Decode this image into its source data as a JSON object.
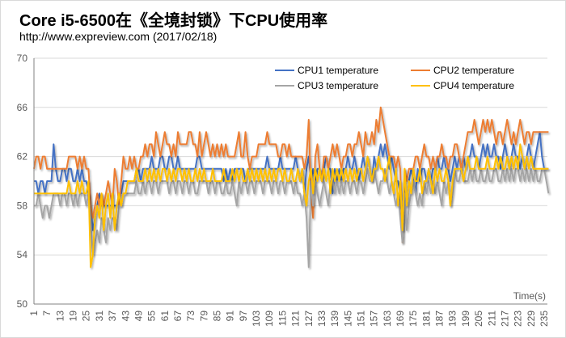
{
  "chart_data": {
    "type": "line",
    "title": "Core i5-6500在《全境封锁》下CPU使用率",
    "subtitle": "http://www.expreview.com (2017/02/18)",
    "xlabel": "Time(s)",
    "ylabel": "",
    "ylim": [
      50,
      70
    ],
    "yticks": [
      50,
      54,
      58,
      62,
      66,
      70
    ],
    "xlim": [
      1,
      237
    ],
    "xticks": [
      1,
      7,
      13,
      19,
      25,
      31,
      37,
      43,
      49,
      55,
      61,
      67,
      73,
      79,
      85,
      91,
      97,
      103,
      109,
      115,
      121,
      127,
      133,
      139,
      145,
      151,
      157,
      163,
      169,
      175,
      181,
      187,
      193,
      199,
      205,
      211,
      217,
      223,
      229,
      235
    ],
    "grid": true,
    "legend_position": "top-right",
    "series": [
      {
        "name": "CPU1 temperature",
        "color": "#4472C4",
        "values": [
          60,
          60,
          59,
          60,
          60,
          59,
          60,
          60,
          60,
          63,
          61,
          60,
          60,
          61,
          61,
          60,
          61,
          61,
          60,
          60,
          61,
          60,
          61,
          60,
          60,
          59,
          58,
          56,
          57,
          58,
          59,
          58,
          58,
          58,
          58,
          58,
          58,
          58,
          58,
          59,
          59,
          60,
          60,
          60,
          60,
          60,
          60,
          61,
          61,
          60,
          61,
          61,
          61,
          61,
          62,
          61,
          61,
          61,
          62,
          62,
          61,
          61,
          62,
          62,
          61,
          61,
          62,
          61,
          61,
          61,
          61,
          61,
          61,
          61,
          61,
          62,
          62,
          61,
          61,
          61,
          61,
          61,
          61,
          61,
          61,
          61,
          61,
          60,
          61,
          60,
          61,
          60,
          61,
          61,
          61,
          61,
          61,
          60,
          61,
          61,
          61,
          61,
          61,
          61,
          61,
          61,
          61,
          62,
          61,
          61,
          61,
          61,
          61,
          62,
          61,
          61,
          61,
          61,
          61,
          61,
          62,
          61,
          60,
          61,
          59,
          61,
          62,
          60,
          61,
          60,
          61,
          61,
          60,
          61,
          62,
          61,
          61,
          59,
          61,
          60,
          61,
          60,
          61,
          61,
          62,
          61,
          61,
          62,
          61,
          60,
          61,
          62,
          61,
          62,
          61,
          60,
          62,
          61,
          62,
          63,
          62,
          63,
          62,
          61,
          62,
          61,
          60,
          60,
          59,
          56,
          60,
          58,
          60,
          61,
          60,
          59,
          61,
          60,
          61,
          61,
          60,
          61,
          60,
          61,
          61,
          62,
          61,
          61,
          62,
          61,
          61,
          60,
          61,
          62,
          61,
          62,
          61,
          62,
          61,
          62,
          62,
          63,
          62,
          62,
          61,
          62,
          63,
          62,
          63,
          62,
          62,
          63,
          62,
          62,
          61,
          62,
          63,
          62,
          61,
          62,
          63,
          62,
          62,
          61,
          62,
          61,
          62,
          63,
          62,
          61,
          62,
          63,
          64,
          62,
          61,
          61,
          61
        ]
      },
      {
        "name": "CPU2 temperature",
        "color": "#ED7D31",
        "values": [
          61,
          62,
          62,
          61,
          62,
          62,
          61,
          61,
          61,
          61,
          61,
          61,
          61,
          61,
          61,
          61,
          62,
          62,
          62,
          62,
          61,
          62,
          61,
          62,
          61,
          61,
          58,
          57,
          58,
          59,
          58,
          59,
          58,
          59,
          60,
          59,
          58,
          61,
          60,
          58,
          60,
          62,
          61,
          61,
          62,
          61,
          62,
          61,
          61,
          62,
          62,
          63,
          62,
          63,
          63,
          62,
          64,
          63,
          62,
          63,
          64,
          63,
          63,
          62,
          63,
          62,
          64,
          63,
          63,
          63,
          63,
          64,
          64,
          63,
          63,
          62,
          64,
          62,
          63,
          64,
          63,
          62,
          63,
          62,
          63,
          62,
          63,
          62,
          63,
          62,
          62,
          62,
          62,
          63,
          64,
          62,
          62,
          64,
          62,
          61,
          62,
          62,
          62,
          63,
          63,
          63,
          63,
          64,
          63,
          63,
          63,
          63,
          62,
          62,
          63,
          63,
          62,
          63,
          62,
          62,
          62,
          62,
          62,
          62,
          61,
          62,
          65,
          59,
          57,
          62,
          63,
          61,
          60,
          62,
          62,
          61,
          62,
          63,
          62,
          63,
          62,
          61,
          62,
          62,
          63,
          63,
          62,
          63,
          63,
          64,
          63,
          62,
          64,
          63,
          63,
          64,
          63,
          65,
          64,
          66,
          65,
          64,
          63,
          62,
          62,
          62,
          61,
          62,
          61,
          55,
          61,
          60,
          61,
          61,
          61,
          62,
          62,
          61,
          62,
          63,
          62,
          62,
          61,
          62,
          61,
          62,
          62,
          63,
          62,
          62,
          61,
          62,
          62,
          63,
          63,
          62,
          61,
          62,
          63,
          64,
          64,
          64,
          65,
          64,
          63,
          64,
          65,
          64,
          65,
          64,
          65,
          64,
          63,
          64,
          64,
          63,
          64,
          65,
          64,
          63,
          64,
          63,
          64,
          65,
          64,
          63,
          64,
          64,
          63,
          64,
          64,
          64,
          64,
          64,
          64,
          64,
          64
        ]
      },
      {
        "name": "CPU3 temperature",
        "color": "#A5A5A5",
        "values": [
          58,
          58,
          59,
          58,
          57,
          58,
          58,
          57,
          58,
          59,
          59,
          59,
          58,
          59,
          59,
          58,
          59,
          59,
          58,
          59,
          58,
          59,
          59,
          59,
          58,
          59,
          57,
          54,
          55,
          56,
          55,
          57,
          56,
          55,
          57,
          56,
          57,
          57,
          56,
          58,
          58,
          59,
          59,
          59,
          59,
          59,
          59,
          60,
          59,
          59,
          60,
          59,
          60,
          60,
          59,
          60,
          60,
          59,
          60,
          60,
          60,
          60,
          59,
          60,
          60,
          59,
          60,
          60,
          59,
          60,
          60,
          59,
          60,
          60,
          59,
          59,
          60,
          60,
          60,
          60,
          59,
          60,
          60,
          59,
          60,
          60,
          59,
          59,
          60,
          59,
          59,
          60,
          59,
          58,
          60,
          59,
          60,
          60,
          59,
          60,
          60,
          59,
          60,
          60,
          60,
          59,
          60,
          60,
          60,
          59,
          60,
          60,
          59,
          60,
          60,
          59,
          60,
          60,
          60,
          59,
          60,
          59,
          59,
          58,
          59,
          57,
          53,
          60,
          58,
          60,
          59,
          58,
          59,
          60,
          59,
          58,
          60,
          60,
          59,
          60,
          59,
          60,
          59,
          60,
          60,
          59,
          60,
          60,
          59,
          60,
          60,
          59,
          60,
          61,
          60,
          60,
          61,
          60,
          59,
          60,
          60,
          61,
          60,
          59,
          60,
          59,
          58,
          59,
          57,
          55,
          59,
          56,
          58,
          59,
          60,
          59,
          58,
          59,
          58,
          60,
          59,
          60,
          59,
          60,
          59,
          60,
          59,
          58,
          60,
          59,
          60,
          58,
          59,
          61,
          60,
          60,
          61,
          60,
          60,
          60,
          61,
          60,
          61,
          60,
          60,
          61,
          60,
          60,
          61,
          60,
          60,
          61,
          61,
          60,
          60,
          61,
          60,
          61,
          60,
          61,
          60,
          61,
          61,
          60,
          61,
          60,
          61,
          60,
          61,
          60,
          61,
          60,
          60,
          61,
          61,
          60,
          59
        ]
      },
      {
        "name": "CPU4 temperature",
        "color": "#FFC000",
        "values": [
          59,
          59,
          59,
          59,
          59,
          59,
          59,
          59,
          59,
          59,
          59,
          59,
          59,
          59,
          59,
          59,
          60,
          59,
          59,
          59,
          60,
          59,
          60,
          59,
          59,
          60,
          53,
          54,
          57,
          58,
          57,
          59,
          56,
          58,
          59,
          57,
          59,
          56,
          58,
          59,
          58,
          59,
          59,
          60,
          60,
          60,
          60,
          61,
          60,
          60,
          60,
          61,
          60,
          61,
          60,
          61,
          60,
          61,
          60,
          61,
          61,
          60,
          61,
          60,
          61,
          60,
          61,
          61,
          60,
          61,
          60,
          61,
          60,
          60,
          61,
          60,
          61,
          60,
          61,
          60,
          60,
          60,
          61,
          60,
          60,
          60,
          60,
          61,
          60,
          60,
          60,
          61,
          60,
          61,
          60,
          61,
          60,
          60,
          61,
          60,
          61,
          60,
          61,
          60,
          61,
          60,
          61,
          60,
          61,
          60,
          61,
          60,
          61,
          61,
          60,
          61,
          60,
          60,
          61,
          60,
          60,
          61,
          60,
          61,
          59,
          58,
          60,
          61,
          59,
          61,
          60,
          61,
          60,
          61,
          60,
          61,
          59,
          61,
          60,
          61,
          60,
          61,
          60,
          61,
          60,
          61,
          60,
          61,
          60,
          61,
          61,
          60,
          61,
          62,
          61,
          60,
          61,
          61,
          62,
          61,
          61,
          60,
          61,
          62,
          60,
          59,
          61,
          58,
          60,
          56,
          61,
          58,
          60,
          59,
          61,
          60,
          60,
          61,
          59,
          60,
          60,
          61,
          60,
          59,
          61,
          60,
          61,
          60,
          60,
          61,
          60,
          58,
          60,
          61,
          61,
          61,
          61,
          60,
          61,
          62,
          61,
          61,
          61,
          62,
          61,
          61,
          61,
          61,
          62,
          61,
          61,
          61,
          62,
          61,
          62,
          61,
          61,
          62,
          61,
          62,
          61,
          62,
          61,
          63,
          62,
          61,
          62,
          61,
          62,
          61,
          61,
          61,
          61,
          61,
          61,
          61,
          61
        ]
      }
    ]
  }
}
